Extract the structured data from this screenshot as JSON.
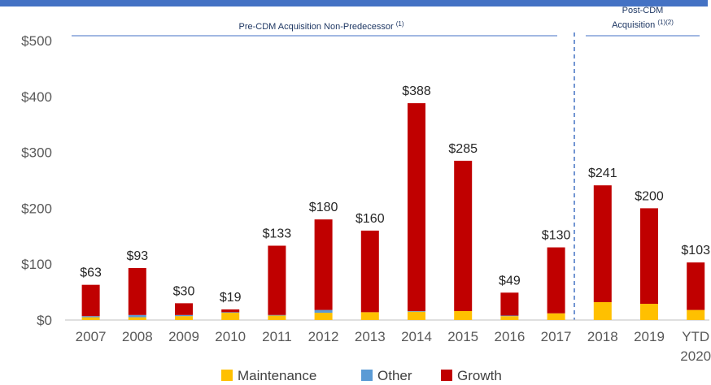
{
  "chart_data": {
    "type": "stacked_bar",
    "categories": [
      "2007",
      "2008",
      "2009",
      "2010",
      "2011",
      "2012",
      "2013",
      "2014",
      "2015",
      "2016",
      "2017",
      "2018",
      "2019",
      "YTD 2020"
    ],
    "series": [
      {
        "name": "Maintenance",
        "color": "#FFC000",
        "values": [
          5,
          5,
          7,
          13,
          8,
          13,
          14,
          15,
          16,
          7,
          12,
          32,
          29,
          18
        ]
      },
      {
        "name": "Other",
        "color": "#5B9BD5",
        "values": [
          2,
          4,
          2,
          1,
          1,
          5,
          0,
          1,
          0,
          1,
          0,
          0,
          0,
          0
        ]
      },
      {
        "name": "Growth",
        "color": "#C00000",
        "values": [
          56,
          84,
          21,
          5,
          124,
          162,
          146,
          372,
          269,
          41,
          118,
          209,
          171,
          85
        ]
      }
    ],
    "totals": [
      63,
      93,
      30,
      19,
      133,
      180,
      160,
      388,
      285,
      49,
      130,
      241,
      200,
      103
    ],
    "total_labels": [
      "$63",
      "$93",
      "$30",
      "$19",
      "$133",
      "$180",
      "$160",
      "$388",
      "$285",
      "$49",
      "$130",
      "$241",
      "$200",
      "$103"
    ],
    "ylim": [
      0,
      500
    ],
    "yticks": [
      {
        "value": 0,
        "label": "$0"
      },
      {
        "value": 100,
        "label": "$100"
      },
      {
        "value": 200,
        "label": "$200"
      },
      {
        "value": 300,
        "label": "$300"
      },
      {
        "value": 400,
        "label": "$400"
      },
      {
        "value": 500,
        "label": "$500"
      }
    ],
    "annotations": {
      "pre": {
        "text": "Pre-CDM Acquisition Non-Predecessor",
        "note": "(1)"
      },
      "post_line1": "Post-CDM",
      "post": {
        "text": "Acquisition",
        "note": "(1)(2)"
      }
    },
    "legend": "bottom"
  }
}
